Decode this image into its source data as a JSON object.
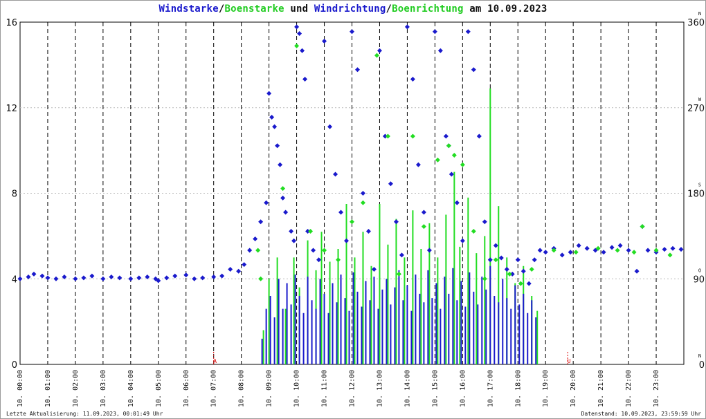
{
  "title": {
    "part1": "Windstarke",
    "sep1": "/",
    "part2": "Boenstarke",
    "part3": " und ",
    "part4": "Windrichtung",
    "sep2": "/",
    "part5": "Boenrichtung",
    "part6": " am 10.09.2023"
  },
  "footer": {
    "left": "Letzte Aktualisierung: 11.09.2023, 00:01:49 Uhr",
    "right": "Datenstand: 10.09.2023, 23:59:59 Uhr"
  },
  "colors": {
    "wind": "#1a1acc",
    "gust": "#22dd22",
    "grid": "#000000",
    "sunmark": "#dd0000"
  },
  "chart_data": {
    "type": "scatter",
    "x_ticks": [
      "10. 00:00",
      "10. 01:00",
      "10. 02:00",
      "10. 03:00",
      "10. 04:00",
      "10. 05:00",
      "10. 06:00",
      "10. 07:00",
      "10. 08:00",
      "10. 09:00",
      "10. 10:00",
      "10. 11:00",
      "10. 12:00",
      "10. 13:00",
      "10. 14:00",
      "10. 15:00",
      "10. 16:00",
      "10. 17:00",
      "10. 18:00",
      "10. 19:00",
      "10. 20:00",
      "10. 21:00",
      "10. 22:00",
      "10. 23:00"
    ],
    "xlim_hours": [
      0,
      24
    ],
    "y_left_ticks": [
      "0",
      "4",
      "8",
      "12",
      "16"
    ],
    "ylim_left": [
      0,
      16
    ],
    "y_right_ticks": [
      "0",
      "90",
      "180",
      "270",
      "360"
    ],
    "ylim_right": [
      0,
      360
    ],
    "compass_labels": [
      "N",
      "O",
      "S",
      "W",
      "N"
    ],
    "sun_markers": [
      {
        "label": "A",
        "hour": 7.0
      },
      {
        "label": "U",
        "hour": 19.8
      }
    ],
    "series": [
      {
        "name": "Windstarke",
        "kind": "bars",
        "color": "#1a1acc",
        "points": [
          [
            8.75,
            1.2
          ],
          [
            8.9,
            2.6
          ],
          [
            9.05,
            3.2
          ],
          [
            9.2,
            2.2
          ],
          [
            9.35,
            4.0
          ],
          [
            9.5,
            2.6
          ],
          [
            9.65,
            3.8
          ],
          [
            9.8,
            2.8
          ],
          [
            9.95,
            4.2
          ],
          [
            10.1,
            3.2
          ],
          [
            10.25,
            2.4
          ],
          [
            10.4,
            4.1
          ],
          [
            10.55,
            3.0
          ],
          [
            10.7,
            2.6
          ],
          [
            10.85,
            4.0
          ],
          [
            11.0,
            3.3
          ],
          [
            11.15,
            2.4
          ],
          [
            11.3,
            3.8
          ],
          [
            11.45,
            2.9
          ],
          [
            11.6,
            4.2
          ],
          [
            11.75,
            3.1
          ],
          [
            11.9,
            2.5
          ],
          [
            12.05,
            4.3
          ],
          [
            12.2,
            3.4
          ],
          [
            12.35,
            2.7
          ],
          [
            12.5,
            3.9
          ],
          [
            12.65,
            3.0
          ],
          [
            12.8,
            4.1
          ],
          [
            12.95,
            2.6
          ],
          [
            13.1,
            3.5
          ],
          [
            13.25,
            4.0
          ],
          [
            13.4,
            2.8
          ],
          [
            13.55,
            3.6
          ],
          [
            13.7,
            4.4
          ],
          [
            13.85,
            3.0
          ],
          [
            14.0,
            3.7
          ],
          [
            14.15,
            2.5
          ],
          [
            14.3,
            4.2
          ],
          [
            14.45,
            3.3
          ],
          [
            14.6,
            2.9
          ],
          [
            14.75,
            4.4
          ],
          [
            14.9,
            3.1
          ],
          [
            15.05,
            3.8
          ],
          [
            15.2,
            2.6
          ],
          [
            15.35,
            4.1
          ],
          [
            15.5,
            3.3
          ],
          [
            15.65,
            4.5
          ],
          [
            15.8,
            3.0
          ],
          [
            15.95,
            3.9
          ],
          [
            16.1,
            2.7
          ],
          [
            16.25,
            4.3
          ],
          [
            16.4,
            3.4
          ],
          [
            16.55,
            2.8
          ],
          [
            16.7,
            4.1
          ],
          [
            16.85,
            3.5
          ],
          [
            17.0,
            4.6
          ],
          [
            17.15,
            3.2
          ],
          [
            17.3,
            2.9
          ],
          [
            17.45,
            4.0
          ],
          [
            17.6,
            3.1
          ],
          [
            17.75,
            2.6
          ],
          [
            17.9,
            3.7
          ],
          [
            18.05,
            2.8
          ],
          [
            18.2,
            3.3
          ],
          [
            18.35,
            2.4
          ],
          [
            18.5,
            3.0
          ],
          [
            18.65,
            2.2
          ]
        ]
      },
      {
        "name": "Boenstarke",
        "kind": "bars",
        "color": "#22dd22",
        "points": [
          [
            8.8,
            1.6
          ],
          [
            9.0,
            4.0
          ],
          [
            9.3,
            5.0
          ],
          [
            9.6,
            2.6
          ],
          [
            9.9,
            5.0
          ],
          [
            10.1,
            3.6
          ],
          [
            10.4,
            5.8
          ],
          [
            10.7,
            4.4
          ],
          [
            10.9,
            6.2
          ],
          [
            11.2,
            4.8
          ],
          [
            11.5,
            5.4
          ],
          [
            11.8,
            7.5
          ],
          [
            12.1,
            5.0
          ],
          [
            12.4,
            6.2
          ],
          [
            12.7,
            4.6
          ],
          [
            13.0,
            7.5
          ],
          [
            13.3,
            5.6
          ],
          [
            13.6,
            6.8
          ],
          [
            13.9,
            5.0
          ],
          [
            14.2,
            7.2
          ],
          [
            14.5,
            5.4
          ],
          [
            14.8,
            6.6
          ],
          [
            15.1,
            5.0
          ],
          [
            15.4,
            7.0
          ],
          [
            15.7,
            9.0
          ],
          [
            15.9,
            5.5
          ],
          [
            16.2,
            7.8
          ],
          [
            16.5,
            5.2
          ],
          [
            16.8,
            6.0
          ],
          [
            17.0,
            12.9
          ],
          [
            17.3,
            7.4
          ],
          [
            17.6,
            5.0
          ],
          [
            17.9,
            3.8
          ],
          [
            18.2,
            4.6
          ],
          [
            18.5,
            3.2
          ],
          [
            18.7,
            2.5
          ]
        ]
      },
      {
        "name": "Windrichtung",
        "kind": "points",
        "color": "#1a1acc",
        "points": [
          [
            0.0,
            90
          ],
          [
            0.3,
            92
          ],
          [
            0.5,
            95
          ],
          [
            0.8,
            93
          ],
          [
            1.0,
            91
          ],
          [
            1.3,
            90
          ],
          [
            1.6,
            92
          ],
          [
            2.0,
            90
          ],
          [
            2.3,
            91
          ],
          [
            2.6,
            93
          ],
          [
            3.0,
            90
          ],
          [
            3.3,
            92
          ],
          [
            3.6,
            91
          ],
          [
            4.0,
            90
          ],
          [
            4.3,
            91
          ],
          [
            4.6,
            92
          ],
          [
            4.9,
            90
          ],
          [
            5.0,
            88
          ],
          [
            5.3,
            91
          ],
          [
            5.6,
            93
          ],
          [
            6.0,
            94
          ],
          [
            6.3,
            90
          ],
          [
            6.6,
            91
          ],
          [
            7.0,
            92
          ],
          [
            7.3,
            93
          ],
          [
            7.6,
            100
          ],
          [
            7.9,
            98
          ],
          [
            8.1,
            105
          ],
          [
            8.3,
            120
          ],
          [
            8.5,
            132
          ],
          [
            8.7,
            150
          ],
          [
            8.9,
            170
          ],
          [
            9.0,
            285
          ],
          [
            9.1,
            260
          ],
          [
            9.2,
            250
          ],
          [
            9.3,
            230
          ],
          [
            9.4,
            210
          ],
          [
            9.5,
            175
          ],
          [
            9.6,
            160
          ],
          [
            9.8,
            140
          ],
          [
            9.9,
            130
          ],
          [
            10.0,
            355
          ],
          [
            10.1,
            348
          ],
          [
            10.2,
            330
          ],
          [
            10.3,
            300
          ],
          [
            10.4,
            140
          ],
          [
            10.6,
            120
          ],
          [
            10.8,
            110
          ],
          [
            11.0,
            340
          ],
          [
            11.2,
            250
          ],
          [
            11.4,
            200
          ],
          [
            11.6,
            160
          ],
          [
            11.8,
            130
          ],
          [
            12.0,
            350
          ],
          [
            12.2,
            310
          ],
          [
            12.4,
            180
          ],
          [
            12.6,
            140
          ],
          [
            12.8,
            100
          ],
          [
            13.0,
            330
          ],
          [
            13.2,
            240
          ],
          [
            13.4,
            190
          ],
          [
            13.6,
            150
          ],
          [
            13.8,
            115
          ],
          [
            14.0,
            355
          ],
          [
            14.2,
            300
          ],
          [
            14.4,
            210
          ],
          [
            14.6,
            160
          ],
          [
            14.8,
            120
          ],
          [
            15.0,
            350
          ],
          [
            15.2,
            330
          ],
          [
            15.4,
            240
          ],
          [
            15.5,
            230
          ],
          [
            15.6,
            200
          ],
          [
            15.8,
            170
          ],
          [
            16.0,
            130
          ],
          [
            16.2,
            350
          ],
          [
            16.4,
            310
          ],
          [
            16.6,
            240
          ],
          [
            16.8,
            150
          ],
          [
            17.0,
            110
          ],
          [
            17.2,
            125
          ],
          [
            17.4,
            112
          ],
          [
            17.6,
            100
          ],
          [
            17.8,
            95
          ],
          [
            18.0,
            110
          ],
          [
            18.2,
            98
          ],
          [
            18.4,
            85
          ],
          [
            18.6,
            110
          ],
          [
            18.8,
            120
          ],
          [
            19.0,
            118
          ],
          [
            19.3,
            122
          ],
          [
            19.6,
            115
          ],
          [
            19.9,
            118
          ],
          [
            20.2,
            125
          ],
          [
            20.5,
            122
          ],
          [
            20.8,
            120
          ],
          [
            21.1,
            118
          ],
          [
            21.4,
            123
          ],
          [
            21.7,
            125
          ],
          [
            22.0,
            120
          ],
          [
            22.3,
            98
          ],
          [
            22.5,
            145
          ],
          [
            22.7,
            120
          ],
          [
            23.0,
            118
          ],
          [
            23.3,
            121
          ],
          [
            23.6,
            122
          ],
          [
            23.9,
            121
          ]
        ]
      },
      {
        "name": "Boenrichtung",
        "kind": "points",
        "color": "#22dd22",
        "points": [
          [
            8.6,
            120
          ],
          [
            8.7,
            90
          ],
          [
            9.5,
            185
          ],
          [
            10.0,
            335
          ],
          [
            10.5,
            140
          ],
          [
            11.0,
            120
          ],
          [
            11.5,
            110
          ],
          [
            12.0,
            150
          ],
          [
            12.4,
            170
          ],
          [
            12.9,
            325
          ],
          [
            13.3,
            240
          ],
          [
            13.7,
            95
          ],
          [
            14.2,
            240
          ],
          [
            14.6,
            145
          ],
          [
            15.1,
            215
          ],
          [
            15.5,
            230
          ],
          [
            15.7,
            220
          ],
          [
            16.0,
            210
          ],
          [
            16.4,
            140
          ],
          [
            16.8,
            90
          ],
          [
            17.2,
            110
          ],
          [
            17.7,
            95
          ],
          [
            18.1,
            85
          ],
          [
            18.5,
            100
          ],
          [
            19.3,
            120
          ],
          [
            20.1,
            118
          ],
          [
            20.9,
            122
          ],
          [
            21.6,
            120
          ],
          [
            22.2,
            118
          ],
          [
            22.5,
            145
          ],
          [
            23.0,
            120
          ],
          [
            23.5,
            115
          ]
        ]
      }
    ]
  }
}
